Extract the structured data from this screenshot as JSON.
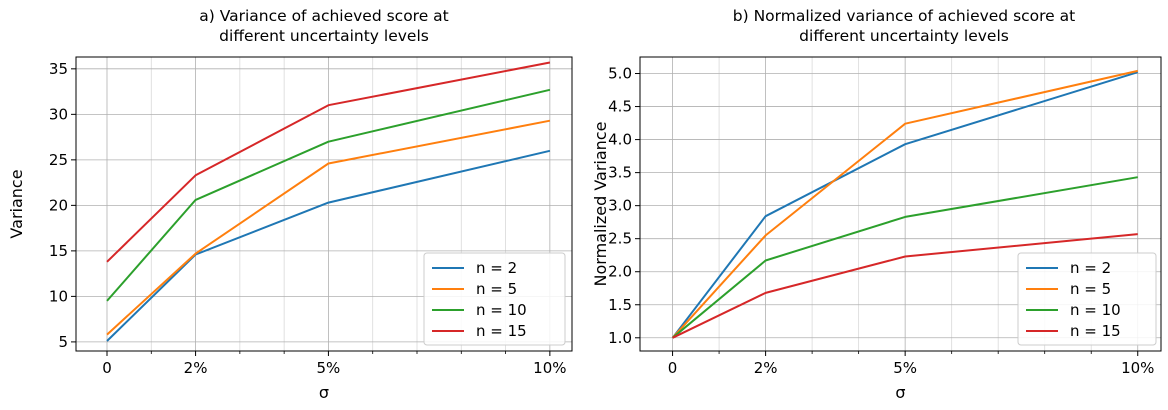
{
  "colors": {
    "n2": "#1f77b4",
    "n5": "#ff7f0e",
    "n10": "#2ca02c",
    "n15": "#d62728"
  },
  "chart_data": [
    {
      "type": "line",
      "title": "a) Variance of achieved score at\ndifferent uncertainty levels",
      "title_lines": [
        "a) Variance of achieved score at",
        "different uncertainty levels"
      ],
      "xlabel": "σ",
      "ylabel": "Variance",
      "x": [
        0,
        2,
        5,
        10
      ],
      "xtick_labels": [
        "0",
        "2%",
        "5%",
        "10%"
      ],
      "xlim": [
        -0.7,
        10.5
      ],
      "ylim": [
        4.0,
        36.3
      ],
      "yticks": [
        5,
        10,
        15,
        20,
        25,
        30,
        35
      ],
      "ytick_labels": [
        "5",
        "10",
        "15",
        "20",
        "25",
        "30",
        "35"
      ],
      "grid": true,
      "legend_position": "lower-right",
      "series": [
        {
          "name": "n = 2",
          "color_key": "n2",
          "values": [
            5.1,
            14.6,
            20.3,
            26.0
          ]
        },
        {
          "name": "n = 5",
          "color_key": "n5",
          "values": [
            5.8,
            14.7,
            24.6,
            29.3
          ]
        },
        {
          "name": "n = 10",
          "color_key": "n10",
          "values": [
            9.5,
            20.6,
            27.0,
            32.7
          ]
        },
        {
          "name": "n = 15",
          "color_key": "n15",
          "values": [
            13.8,
            23.3,
            31.0,
            35.7
          ]
        }
      ]
    },
    {
      "type": "line",
      "title": "b) Normalized variance of achieved score at\ndifferent uncertainty levels",
      "title_lines": [
        "b) Normalized variance of achieved score at",
        "different uncertainty levels"
      ],
      "xlabel": "σ",
      "ylabel": "Normalized Variance",
      "x": [
        0,
        2,
        5,
        10
      ],
      "xtick_labels": [
        "0",
        "2%",
        "5%",
        "10%"
      ],
      "xlim": [
        -0.7,
        10.5
      ],
      "ylim": [
        0.8,
        5.25
      ],
      "yticks": [
        1.0,
        1.5,
        2.0,
        2.5,
        3.0,
        3.5,
        4.0,
        4.5,
        5.0
      ],
      "ytick_labels": [
        "1.0",
        "1.5",
        "2.0",
        "2.5",
        "3.0",
        "3.5",
        "4.0",
        "4.5",
        "5.0"
      ],
      "grid": true,
      "legend_position": "lower-right",
      "series": [
        {
          "name": "n = 2",
          "color_key": "n2",
          "values": [
            1.0,
            2.84,
            3.93,
            5.02
          ]
        },
        {
          "name": "n = 5",
          "color_key": "n5",
          "values": [
            1.0,
            2.55,
            4.24,
            5.04
          ]
        },
        {
          "name": "n = 10",
          "color_key": "n10",
          "values": [
            1.0,
            2.17,
            2.83,
            3.43
          ]
        },
        {
          "name": "n = 15",
          "color_key": "n15",
          "values": [
            1.0,
            1.68,
            2.23,
            2.57
          ]
        }
      ]
    }
  ]
}
